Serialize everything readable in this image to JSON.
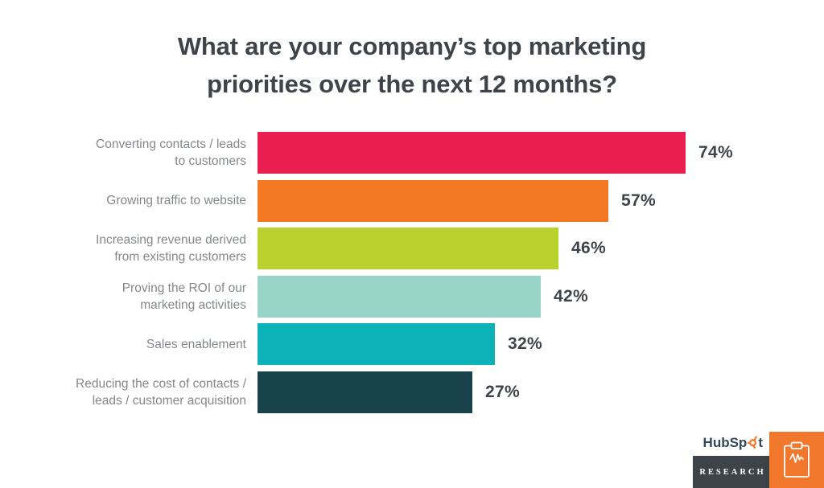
{
  "page": {
    "background": "#FFFFFF"
  },
  "title": {
    "text": "What are your company’s top marketing\npriorities over the next 12 months?",
    "color": "#3E444A"
  },
  "chart_data": {
    "type": "bar",
    "orientation": "horizontal",
    "title": "What are your company’s top marketing priorities over the next 12 months?",
    "categories": [
      "Converting contacts / leads\nto customers",
      "Growing traffic to website",
      "Increasing revenue derived\nfrom existing customers",
      "Proving the ROI of our\nmarketing activities",
      "Sales enablement",
      "Reducing the cost of contacts /\nleads / customer acquisition"
    ],
    "values": [
      74,
      57,
      46,
      42,
      32,
      27
    ],
    "value_labels": [
      "74%",
      "57%",
      "46%",
      "42%",
      "32%",
      "27%"
    ],
    "bar_colors": [
      "#E91E50",
      "#F47721",
      "#B8D12D",
      "#97D3C6",
      "#0DB2B8",
      "#17424B"
    ],
    "category_label_color": "#84888B",
    "value_label_color": "#3E444A",
    "axes_visible": false,
    "grid": false,
    "legend": false
  },
  "footer": {
    "brand_prefix": "HubSp",
    "brand_suffix": "t",
    "brand_color": "#33475B",
    "sprocket_color": "#F0772B",
    "research_label": "RESEARCH",
    "research_bg": "#3D4449",
    "research_text_color": "#FFFFFF",
    "badge_bg": "#F0772B",
    "badge_icon": "clipboard-pulse-icon"
  }
}
